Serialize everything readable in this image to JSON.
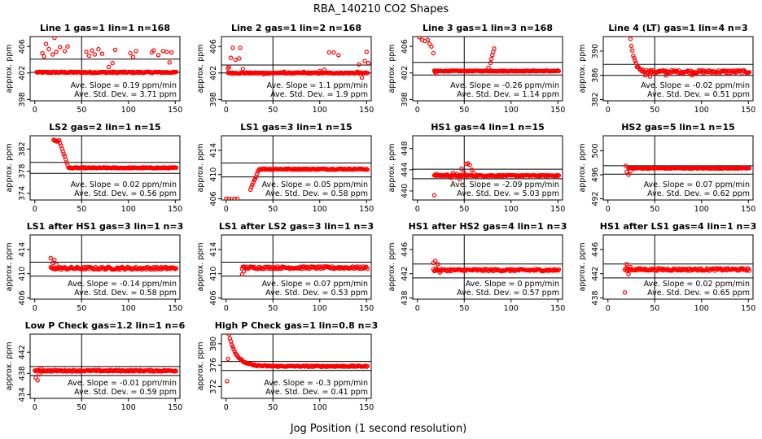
{
  "figure": {
    "title": "RBA_140210  CO2 Shapes",
    "xlabel": "Jog Position (1 second resolution)",
    "point_color": "#ff0000"
  },
  "chart_data": [
    {
      "type": "scatter",
      "title": "Line 1 gas=1 lin=1 n=168",
      "ylabel": "approx. ppm",
      "xlim": [
        -5,
        155
      ],
      "xticks": [
        0,
        50,
        100,
        150
      ],
      "ylim": [
        397.8,
        407.5
      ],
      "yticks": [
        398,
        402,
        406
      ],
      "hlines": [
        404.1,
        402.1
      ],
      "vline": 50,
      "ann_slope": "Ave. Slope =  0.19  ppm/min",
      "ann_sd": "Ave. Std. Dev. =  3.71  ppm",
      "shape": {
        "kind": "flat",
        "start": 2,
        "base": 402.1,
        "noise": 0.1,
        "outliers": [
          [
            8,
            405.0
          ],
          [
            10,
            404.5
          ],
          [
            12,
            406.4
          ],
          [
            15,
            405.6
          ],
          [
            19,
            404.8
          ],
          [
            21,
            407.3
          ],
          [
            23,
            405.2
          ],
          [
            27,
            405.9
          ],
          [
            32,
            405.3
          ],
          [
            35,
            406.0
          ],
          [
            55,
            405.2
          ],
          [
            58,
            404.6
          ],
          [
            61,
            405.4
          ],
          [
            64,
            404.8
          ],
          [
            68,
            405.6
          ],
          [
            72,
            404.9
          ],
          [
            79,
            402.9
          ],
          [
            83,
            403.5
          ],
          [
            86,
            405.5
          ],
          [
            102,
            405.0
          ],
          [
            105,
            404.4
          ],
          [
            108,
            405.3
          ],
          [
            125,
            405.1
          ],
          [
            127,
            405.4
          ],
          [
            132,
            404.7
          ],
          [
            137,
            405.3
          ],
          [
            141,
            405.2
          ],
          [
            144,
            403.6
          ],
          [
            146,
            405.1
          ]
        ]
      }
    },
    {
      "type": "scatter",
      "title": "Line 2 gas=1 lin=2 n=168",
      "ylabel": "approx. ppm",
      "xlim": [
        -5,
        155
      ],
      "xticks": [
        0,
        50,
        100,
        150
      ],
      "ylim": [
        397.8,
        407.5
      ],
      "yticks": [
        398,
        402,
        406
      ],
      "hlines": [
        403.2,
        402.0
      ],
      "vline": 50,
      "ann_slope": "Ave. Slope =  1.1  ppm/min",
      "ann_sd": "Ave. Std. Dev. =  1.9  ppm",
      "shape": {
        "kind": "flat",
        "start": 2,
        "base": 402.0,
        "noise": 0.08,
        "outliers": [
          [
            2,
            402.7
          ],
          [
            3,
            402.9
          ],
          [
            5,
            404.3
          ],
          [
            7,
            405.8
          ],
          [
            10,
            404.0
          ],
          [
            14,
            404.2
          ],
          [
            15,
            405.8
          ],
          [
            18,
            402.6
          ],
          [
            40,
            401.8
          ],
          [
            45,
            401.9
          ],
          [
            62,
            402.2
          ],
          [
            83,
            402.2
          ],
          [
            100,
            402.3
          ],
          [
            105,
            402.5
          ],
          [
            110,
            405.1
          ],
          [
            115,
            405.1
          ],
          [
            120,
            404.7
          ],
          [
            140,
            402.2
          ],
          [
            142,
            403.3
          ],
          [
            145,
            401.3
          ],
          [
            148,
            403.8
          ],
          [
            150,
            405.2
          ],
          [
            152,
            403.5
          ]
        ]
      }
    },
    {
      "type": "scatter",
      "title": "Line 3 gas=1 lin=3 n=168",
      "ylabel": "approx. ppm",
      "xlim": [
        -5,
        155
      ],
      "xticks": [
        0,
        50,
        100,
        150
      ],
      "ylim": [
        397.8,
        407.5
      ],
      "yticks": [
        398,
        402,
        406
      ],
      "hlines": [
        403.6,
        401.7
      ],
      "vline": 50,
      "ann_slope": "Ave. Slope =  -0.26  ppm/min",
      "ann_sd": "Ave. Std. Dev. =  1.14  ppm",
      "shape": {
        "kind": "flat",
        "start": 18,
        "base": 402.3,
        "noise": 0.07,
        "outliers": [
          [
            2,
            407.4
          ],
          [
            5,
            407.0
          ],
          [
            8,
            406.8
          ],
          [
            11,
            407.0
          ],
          [
            13,
            406.4
          ],
          [
            15,
            406.0
          ],
          [
            17,
            405.0
          ],
          [
            19,
            402.1
          ],
          [
            20,
            401.9
          ],
          [
            76,
            402.8
          ],
          [
            78,
            403.5
          ],
          [
            79,
            404.1
          ],
          [
            80,
            404.7
          ],
          [
            81,
            405.2
          ],
          [
            82,
            405.7
          ]
        ]
      }
    },
    {
      "type": "scatter",
      "title": "Line 4 (LT) gas=1 lin=4 n=3",
      "ylabel": "approx. ppm",
      "xlim": [
        -5,
        155
      ],
      "xticks": [
        0,
        50,
        100,
        150
      ],
      "ylim": [
        381.8,
        392.4
      ],
      "yticks": [
        382,
        386,
        390
      ],
      "hlines": [
        387.8,
        386.0
      ],
      "vline": 50,
      "ann_slope": "Ave. Slope =  -0.02  ppm/min",
      "ann_sd": "Ave. Std. Dev. =  0.51  ppm",
      "shape": {
        "kind": "decay",
        "start": 24,
        "base": 386.6,
        "amp": 5.5,
        "tau": 4,
        "noise": 0.25,
        "outliers": [
          [
            40,
            386.0
          ],
          [
            45,
            385.8
          ],
          [
            62,
            386.0
          ],
          [
            90,
            386.0
          ]
        ]
      }
    },
    {
      "type": "scatter",
      "title": "LS2 gas=2 lin=1 n=15",
      "ylabel": "approx. ppm",
      "xlim": [
        -5,
        155
      ],
      "xticks": [
        0,
        50,
        100,
        150
      ],
      "ylim": [
        372.8,
        384.4
      ],
      "yticks": [
        374,
        378,
        382
      ],
      "hlines": [
        379.6,
        377.6
      ],
      "vline": 50,
      "ann_slope": "Ave. Slope =  0.02  ppm/min",
      "ann_sd": "Ave. Std. Dev. =  0.56  ppm",
      "shape": {
        "kind": "drop",
        "start": 20,
        "base": 378.6,
        "high": 383.6,
        "dropStart": 26,
        "dropEnd": 36,
        "noise": 0.09,
        "outliers": []
      }
    },
    {
      "type": "scatter",
      "title": "LS1 gas=3 lin=1 n=15",
      "ylabel": "approx. ppm",
      "xlim": [
        -5,
        155
      ],
      "xticks": [
        0,
        50,
        100,
        150
      ],
      "ylim": [
        405.8,
        416.4
      ],
      "yticks": [
        406,
        410,
        414
      ],
      "hlines": [
        411.9,
        409.6
      ],
      "vline": 50,
      "ann_slope": "Ave. Slope =  0.05  ppm/min",
      "ann_sd": "Ave. Std. Dev. =  0.58  ppm",
      "shape": {
        "kind": "rise",
        "start": 26,
        "base": 410.9,
        "low": 407.5,
        "riseStart": 26,
        "riseEnd": 35,
        "noise": 0.1,
        "outliers": [
          [
            0,
            406.0
          ],
          [
            3,
            406.0
          ],
          [
            6,
            405.9
          ],
          [
            9,
            406.0
          ],
          [
            12,
            406.0
          ]
        ]
      }
    },
    {
      "type": "scatter",
      "title": "HS1 gas=4 lin=1 n=15",
      "ylabel": "approx. ppm",
      "xlim": [
        -5,
        155
      ],
      "xticks": [
        0,
        50,
        100,
        150
      ],
      "ylim": [
        438.3,
        450.4
      ],
      "yticks": [
        440,
        444,
        448
      ],
      "hlines": [
        444.1,
        442.3
      ],
      "vline": 50,
      "ann_slope": "Ave. Slope =  -2.09  ppm/min",
      "ann_sd": "Ave. Std. Dev. =  5.03  ppm",
      "shape": {
        "kind": "flat",
        "start": 18,
        "base": 442.9,
        "noise": 0.1,
        "outliers": [
          [
            18,
            439.2
          ],
          [
            20,
            443.2
          ],
          [
            24,
            443.0
          ],
          [
            28,
            443.0
          ],
          [
            32,
            443.1
          ],
          [
            36,
            442.5
          ],
          [
            38,
            443.4
          ],
          [
            42,
            443.2
          ],
          [
            45,
            442.2
          ],
          [
            47,
            444.2
          ],
          [
            50,
            443.5
          ],
          [
            52,
            445.1
          ],
          [
            54,
            445.2
          ],
          [
            56,
            444.9
          ],
          [
            58,
            444.0
          ],
          [
            60,
            443.4
          ]
        ]
      }
    },
    {
      "type": "scatter",
      "title": "HS2 gas=5 lin=1 n=15",
      "ylabel": "approx. ppm",
      "xlim": [
        -5,
        155
      ],
      "xticks": [
        0,
        50,
        100,
        150
      ],
      "ylim": [
        491.8,
        502.5
      ],
      "yticks": [
        492,
        496,
        500
      ],
      "hlines": [
        497.5,
        496.1
      ],
      "vline": 50,
      "ann_slope": "Ave. Slope =  0.07  ppm/min",
      "ann_sd": "Ave. Std. Dev. =  0.62  ppm",
      "shape": {
        "kind": "flat",
        "start": 22,
        "base": 497.1,
        "noise": 0.09,
        "outliers": [
          [
            19,
            497.5
          ],
          [
            20,
            496.5
          ],
          [
            22,
            496.0
          ],
          [
            24,
            496.6
          ]
        ]
      }
    },
    {
      "type": "scatter",
      "title": "LS1 after HS1 gas=3 lin=1 n=3",
      "ylabel": "approx. ppm",
      "xlim": [
        -5,
        155
      ],
      "xticks": [
        0,
        50,
        100,
        150
      ],
      "ylim": [
        405.8,
        416.4
      ],
      "yticks": [
        406,
        410,
        414
      ],
      "hlines": [
        411.9,
        409.6
      ],
      "vline": 50,
      "ann_slope": "Ave. Slope =  -0.14  ppm/min",
      "ann_sd": "Ave. Std. Dev. =  0.58  ppm",
      "shape": {
        "kind": "flat",
        "start": 17,
        "base": 410.9,
        "noise": 0.22,
        "outliers": [
          [
            17,
            412.6
          ],
          [
            19,
            411.8
          ],
          [
            21,
            412.3
          ],
          [
            23,
            411.5
          ]
        ]
      }
    },
    {
      "type": "scatter",
      "title": "LS1 after LS2 gas=3 lin=1 n=3",
      "ylabel": "approx. ppm",
      "xlim": [
        -5,
        155
      ],
      "xticks": [
        0,
        50,
        100,
        150
      ],
      "ylim": [
        405.8,
        416.4
      ],
      "yticks": [
        406,
        410,
        414
      ],
      "hlines": [
        411.9,
        409.6
      ],
      "vline": 50,
      "ann_slope": "Ave. Slope =  0.07  ppm/min",
      "ann_sd": "Ave. Std. Dev. =  0.53  ppm",
      "shape": {
        "kind": "flat",
        "start": 17,
        "base": 411.0,
        "noise": 0.2,
        "outliers": [
          [
            17,
            409.9
          ],
          [
            19,
            410.4
          ]
        ]
      }
    },
    {
      "type": "scatter",
      "title": "HS1 after HS2 gas=4 lin=1 n=3",
      "ylabel": "approx. ppm",
      "xlim": [
        -5,
        155
      ],
      "xticks": [
        0,
        50,
        100,
        150
      ],
      "ylim": [
        437.8,
        448.4
      ],
      "yticks": [
        438,
        442,
        446
      ],
      "hlines": [
        443.6,
        441.3
      ],
      "vline": 50,
      "ann_slope": "Ave. Slope =  0  ppm/min",
      "ann_sd": "Ave. Std. Dev. =  0.57  ppm",
      "shape": {
        "kind": "flat",
        "start": 17,
        "base": 442.6,
        "noise": 0.18,
        "outliers": [
          [
            17,
            443.8
          ],
          [
            19,
            444.1
          ],
          [
            20,
            442.9
          ],
          [
            22,
            443.6
          ],
          [
            24,
            442.2
          ]
        ]
      }
    },
    {
      "type": "scatter",
      "title": "HS1 after LS1 gas=4 lin=1 n=3",
      "ylabel": "approx. ppm",
      "xlim": [
        -5,
        155
      ],
      "xticks": [
        0,
        50,
        100,
        150
      ],
      "ylim": [
        437.8,
        448.4
      ],
      "yticks": [
        438,
        442,
        446
      ],
      "hlines": [
        443.6,
        441.3
      ],
      "vline": 50,
      "ann_slope": "Ave. Slope =  0.02  ppm/min",
      "ann_sd": "Ave. Std. Dev. =  0.65  ppm",
      "shape": {
        "kind": "flat",
        "start": 18,
        "base": 442.7,
        "noise": 0.2,
        "outliers": [
          [
            18,
            438.9
          ],
          [
            20,
            443.6
          ],
          [
            22,
            441.9
          ],
          [
            24,
            443.1
          ]
        ]
      }
    },
    {
      "type": "scatter",
      "title": "Low P Check gas=1.2 lin=1 n=6",
      "ylabel": "approx. ppm",
      "xlim": [
        -5,
        155
      ],
      "xticks": [
        0,
        50,
        100,
        150
      ],
      "ylim": [
        433.3,
        445.4
      ],
      "yticks": [
        434,
        438,
        442
      ],
      "hlines": [
        439.3,
        437.6
      ],
      "vline": 50,
      "ann_slope": "Ave. Slope =  -0.01  ppm/min",
      "ann_sd": "Ave. Std. Dev. =  0.59  ppm",
      "shape": {
        "kind": "flat",
        "start": 0,
        "base": 438.5,
        "noise": 0.14,
        "outliers": [
          [
            1,
            437.2
          ],
          [
            3,
            436.7
          ],
          [
            5,
            437.8
          ],
          [
            7,
            438.9
          ]
        ]
      }
    },
    {
      "type": "scatter",
      "title": "High P Check gas=1 lin=0.8 n=3",
      "ylabel": "approx. ppm",
      "xlim": [
        -5,
        155
      ],
      "xticks": [
        0,
        50,
        100,
        150
      ],
      "ylim": [
        369.8,
        381.8
      ],
      "yticks": [
        372,
        376,
        380
      ],
      "hlines": [
        376.7,
        375.0
      ],
      "vline": 50,
      "ann_slope": "Ave. Slope =  -0.3  ppm/min",
      "ann_sd": "Ave. Std. Dev. =  0.41  ppm",
      "shape": {
        "kind": "decay",
        "start": 3,
        "base": 375.8,
        "amp": 6.0,
        "tau": 8,
        "noise": 0.12,
        "outliers": [
          [
            1,
            373.0
          ],
          [
            2,
            377.2
          ]
        ]
      }
    }
  ]
}
